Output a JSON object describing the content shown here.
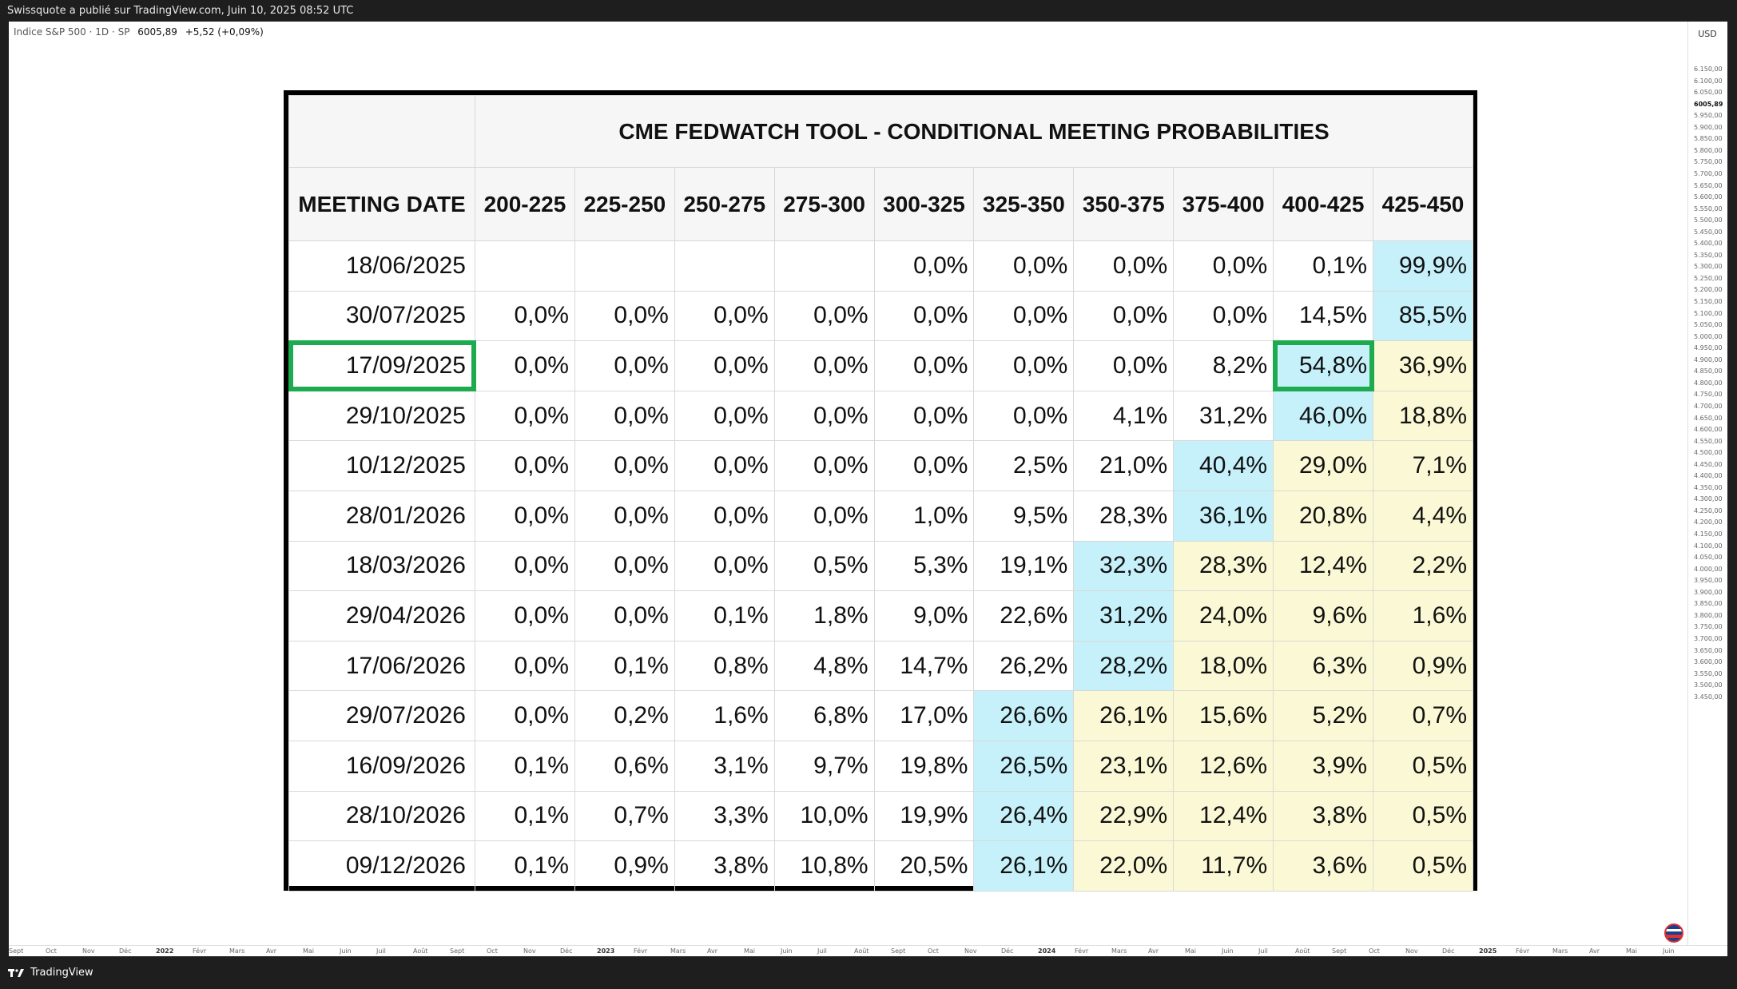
{
  "publisher_bar": {
    "text": "Swissquote a publié sur TradingView.com, Juin 10, 2025 08:52 UTC"
  },
  "symbol": {
    "name": "Indice S&P 500 · 1D · SP",
    "price": "6005,89",
    "change": "+5,52 (+0,09%)"
  },
  "currency": "USD",
  "y_ticks": [
    "6.150,00",
    "6.100,00",
    "6.050,00",
    "6005,89",
    "5.950,00",
    "5.900,00",
    "5.850,00",
    "5.800,00",
    "5.750,00",
    "5.700,00",
    "5.650,00",
    "5.600,00",
    "5.550,00",
    "5.500,00",
    "5.450,00",
    "5.400,00",
    "5.350,00",
    "5.300,00",
    "5.250,00",
    "5.200,00",
    "5.150,00",
    "5.100,00",
    "5.050,00",
    "5.000,00",
    "4.950,00",
    "4.900,00",
    "4.850,00",
    "4.800,00",
    "4.750,00",
    "4.700,00",
    "4.650,00",
    "4.600,00",
    "4.550,00",
    "4.500,00",
    "4.450,00",
    "4.400,00",
    "4.350,00",
    "4.300,00",
    "4.250,00",
    "4.200,00",
    "4.150,00",
    "4.100,00",
    "4.050,00",
    "4.000,00",
    "3.950,00",
    "3.900,00",
    "3.850,00",
    "3.800,00",
    "3.750,00",
    "3.700,00",
    "3.650,00",
    "3.600,00",
    "3.550,00",
    "3.500,00",
    "3.450,00"
  ],
  "x_ticks": [
    "Sept",
    "Oct",
    "Nov",
    "Déc",
    "2022",
    "Févr",
    "Mars",
    "Avr",
    "Mai",
    "Juin",
    "Juil",
    "Août",
    "Sept",
    "Oct",
    "Nov",
    "Déc",
    "2023",
    "Févr",
    "Mars",
    "Avr",
    "Mai",
    "Juin",
    "Juil",
    "Août",
    "Sept",
    "Oct",
    "Nov",
    "Déc",
    "2024",
    "Févr",
    "Mars",
    "Avr",
    "Mai",
    "Juin",
    "Juil",
    "Août",
    "Sept",
    "Oct",
    "Nov",
    "Déc",
    "2025",
    "Févr",
    "Mars",
    "Avr",
    "Mai",
    "Juin"
  ],
  "x_year_labels": [
    "2022",
    "2023",
    "2024",
    "2025"
  ],
  "bottom_bar": {
    "brand": "TradingView"
  },
  "table": {
    "title": "CME FEDWATCH TOOL - CONDITIONAL MEETING PROBABILITIES",
    "date_header": "MEETING DATE",
    "columns": [
      "200-225",
      "225-250",
      "250-275",
      "275-300",
      "300-325",
      "325-350",
      "350-375",
      "375-400",
      "400-425",
      "425-450"
    ],
    "rows": [
      {
        "date": "18/06/2025",
        "values": [
          "",
          "",
          "",
          "",
          "0,0%",
          "0,0%",
          "0,0%",
          "0,0%",
          "0,1%",
          "99,9%"
        ],
        "colors": [
          "",
          "",
          "",
          "",
          "",
          "",
          "",
          "",
          "",
          "b"
        ]
      },
      {
        "date": "30/07/2025",
        "values": [
          "0,0%",
          "0,0%",
          "0,0%",
          "0,0%",
          "0,0%",
          "0,0%",
          "0,0%",
          "0,0%",
          "14,5%",
          "85,5%"
        ],
        "colors": [
          "",
          "",
          "",
          "",
          "",
          "",
          "",
          "",
          "",
          "b"
        ]
      },
      {
        "date": "17/09/2025",
        "values": [
          "0,0%",
          "0,0%",
          "0,0%",
          "0,0%",
          "0,0%",
          "0,0%",
          "0,0%",
          "8,2%",
          "54,8%",
          "36,9%"
        ],
        "colors": [
          "",
          "",
          "",
          "",
          "",
          "",
          "",
          "",
          "b",
          "y"
        ]
      },
      {
        "date": "29/10/2025",
        "values": [
          "0,0%",
          "0,0%",
          "0,0%",
          "0,0%",
          "0,0%",
          "0,0%",
          "4,1%",
          "31,2%",
          "46,0%",
          "18,8%"
        ],
        "colors": [
          "",
          "",
          "",
          "",
          "",
          "",
          "",
          "",
          "b",
          "y"
        ]
      },
      {
        "date": "10/12/2025",
        "values": [
          "0,0%",
          "0,0%",
          "0,0%",
          "0,0%",
          "0,0%",
          "2,5%",
          "21,0%",
          "40,4%",
          "29,0%",
          "7,1%"
        ],
        "colors": [
          "",
          "",
          "",
          "",
          "",
          "",
          "",
          "b",
          "y",
          "y"
        ]
      },
      {
        "date": "28/01/2026",
        "values": [
          "0,0%",
          "0,0%",
          "0,0%",
          "0,0%",
          "1,0%",
          "9,5%",
          "28,3%",
          "36,1%",
          "20,8%",
          "4,4%"
        ],
        "colors": [
          "",
          "",
          "",
          "",
          "",
          "",
          "",
          "b",
          "y",
          "y"
        ]
      },
      {
        "date": "18/03/2026",
        "values": [
          "0,0%",
          "0,0%",
          "0,0%",
          "0,5%",
          "5,3%",
          "19,1%",
          "32,3%",
          "28,3%",
          "12,4%",
          "2,2%"
        ],
        "colors": [
          "",
          "",
          "",
          "",
          "",
          "",
          "b",
          "y",
          "y",
          "y"
        ]
      },
      {
        "date": "29/04/2026",
        "values": [
          "0,0%",
          "0,0%",
          "0,1%",
          "1,8%",
          "9,0%",
          "22,6%",
          "31,2%",
          "24,0%",
          "9,6%",
          "1,6%"
        ],
        "colors": [
          "",
          "",
          "",
          "",
          "",
          "",
          "b",
          "y",
          "y",
          "y"
        ]
      },
      {
        "date": "17/06/2026",
        "values": [
          "0,0%",
          "0,1%",
          "0,8%",
          "4,8%",
          "14,7%",
          "26,2%",
          "28,2%",
          "18,0%",
          "6,3%",
          "0,9%"
        ],
        "colors": [
          "",
          "",
          "",
          "",
          "",
          "",
          "b",
          "y",
          "y",
          "y"
        ]
      },
      {
        "date": "29/07/2026",
        "values": [
          "0,0%",
          "0,2%",
          "1,6%",
          "6,8%",
          "17,0%",
          "26,6%",
          "26,1%",
          "15,6%",
          "5,2%",
          "0,7%"
        ],
        "colors": [
          "",
          "",
          "",
          "",
          "",
          "b",
          "y",
          "y",
          "y",
          "y"
        ]
      },
      {
        "date": "16/09/2026",
        "values": [
          "0,1%",
          "0,6%",
          "3,1%",
          "9,7%",
          "19,8%",
          "26,5%",
          "23,1%",
          "12,6%",
          "3,9%",
          "0,5%"
        ],
        "colors": [
          "",
          "",
          "",
          "",
          "",
          "b",
          "y",
          "y",
          "y",
          "y"
        ]
      },
      {
        "date": "28/10/2026",
        "values": [
          "0,1%",
          "0,7%",
          "3,3%",
          "10,0%",
          "19,9%",
          "26,4%",
          "22,9%",
          "12,4%",
          "3,8%",
          "0,5%"
        ],
        "colors": [
          "",
          "",
          "",
          "",
          "",
          "b",
          "y",
          "y",
          "y",
          "y"
        ]
      },
      {
        "date": "09/12/2026",
        "values": [
          "0,1%",
          "0,9%",
          "3,8%",
          "10,8%",
          "20,5%",
          "26,1%",
          "22,0%",
          "11,7%",
          "3,6%",
          "0,5%"
        ],
        "colors": [
          "",
          "",
          "",
          "",
          "",
          "b",
          "y",
          "y",
          "y",
          "y"
        ]
      }
    ],
    "highlight": {
      "row": 2,
      "col": 8,
      "color": "#1eaa4e"
    },
    "colors": {
      "blue": "#c6f1fb",
      "yellow": "#fbf9d5"
    }
  }
}
